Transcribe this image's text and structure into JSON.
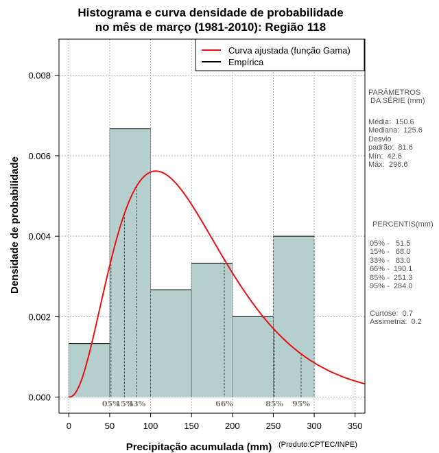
{
  "chart_data": {
    "type": "bar",
    "title_line1": "Histograma e curva densidade de probabilidade",
    "title_line2": "no mês de março (1981-2010): Região 118",
    "xlabel": "Precipitação acumulada (mm)",
    "ylabel": "Densidade de probabilidade",
    "credit": "(Produto:CPTEC/INPE)",
    "xlim": [
      -12,
      362
    ],
    "ylim": [
      -0.0004,
      0.0089
    ],
    "x_ticks": [
      0,
      50,
      100,
      150,
      200,
      250,
      300,
      350
    ],
    "y_ticks": [
      0.0,
      0.002,
      0.004,
      0.006,
      0.008
    ],
    "y_tick_labels": [
      "0.000",
      "0.002",
      "0.004",
      "0.006",
      "0.008"
    ],
    "grid": true,
    "bins": [
      {
        "from": 0,
        "to": 50,
        "density": 0.00133
      },
      {
        "from": 50,
        "to": 100,
        "density": 0.00667
      },
      {
        "from": 100,
        "to": 150,
        "density": 0.00267
      },
      {
        "from": 150,
        "to": 200,
        "density": 0.00333
      },
      {
        "from": 200,
        "to": 250,
        "density": 0.002
      },
      {
        "from": 250,
        "to": 300,
        "density": 0.004
      }
    ],
    "gamma_fit": {
      "mean": 150.6,
      "sd": 81.6
    },
    "percentile_marks": [
      {
        "label": "05%",
        "value": 51.5
      },
      {
        "label": "15%",
        "value": 68.0
      },
      {
        "label": "33%",
        "value": 83.0
      },
      {
        "label": "66%",
        "value": 190.1
      },
      {
        "label": "85%",
        "value": 251.3
      },
      {
        "label": "95%",
        "value": 284.0
      }
    ],
    "legend": {
      "position": "top-right",
      "fitted": "Curva ajustada (função Gama)",
      "empirical": "Empírica"
    },
    "colors": {
      "bars": "#b5cfcf",
      "curve": "#e81010",
      "grid": "#b0b0b0",
      "percentile": "#555555"
    }
  },
  "side_panel": {
    "params_title": "PARÂMETROS\n DA SÉRIE (mm)",
    "params_lines": "Média:  150.6\nMediana:  125.6\nDesvio\npadrão:  81.6\nMín:  42.6\nMáx:  296.6",
    "percentis_title": "PERCENTIS(mm)",
    "percentis_lines": "05% -   51.5\n15% -   68.0\n33% -   83.0\n66% -  190.1\n85% -  251.3\n95% -  284.0",
    "stats_lines": "Curtose:  0.7\nAssimetria:  0.2"
  }
}
